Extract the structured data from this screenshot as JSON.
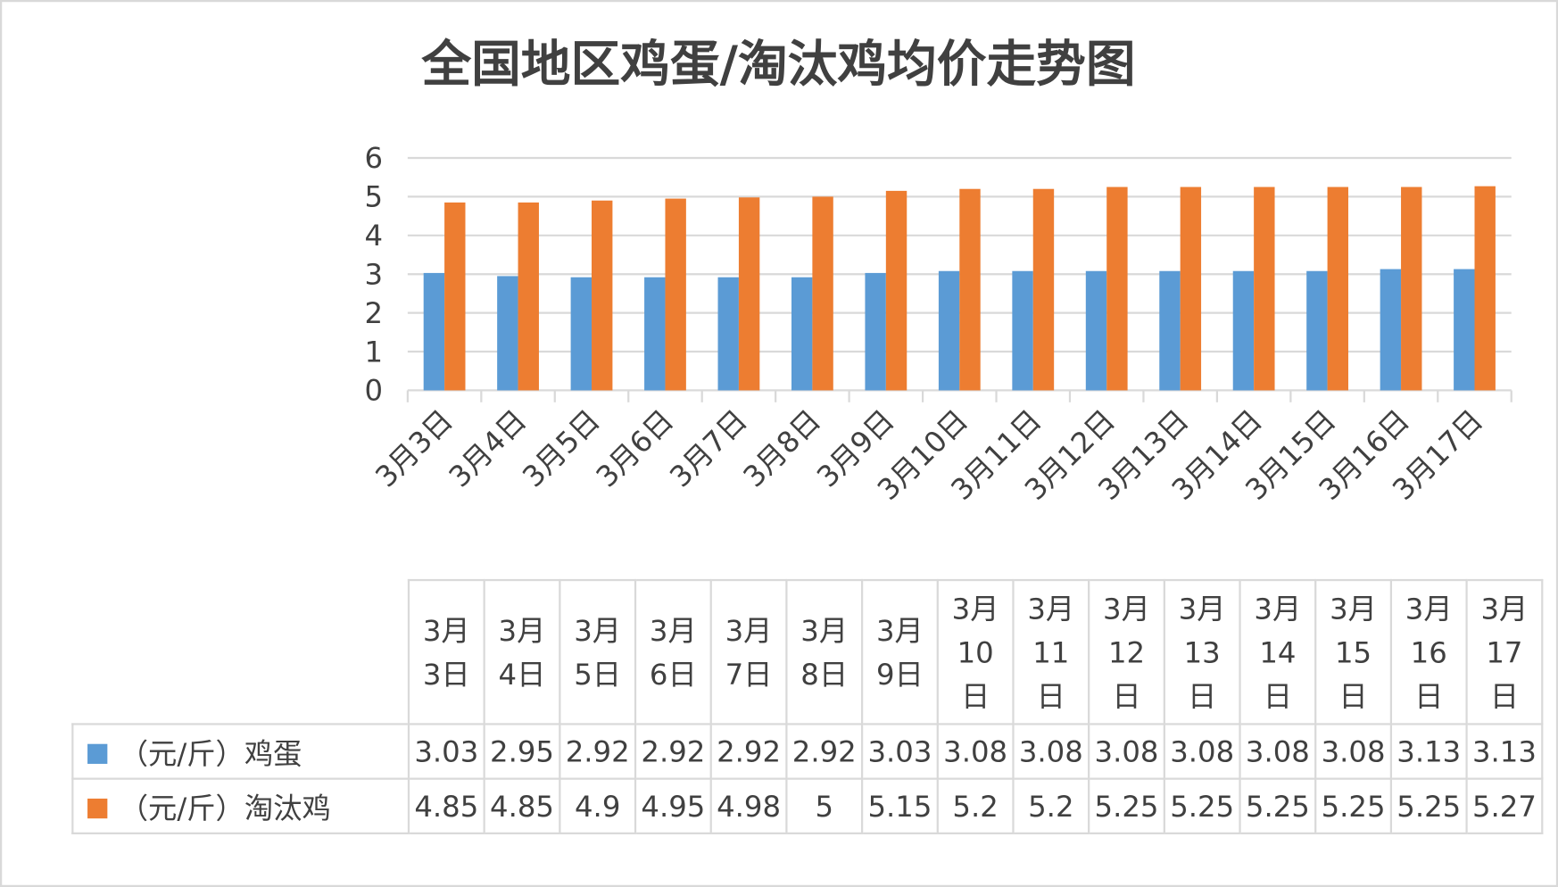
{
  "chart_data": {
    "type": "bar",
    "title": "全国地区鸡蛋/淘汰鸡均价走势图",
    "categories": [
      "3月3日",
      "3月4日",
      "3月5日",
      "3月6日",
      "3月7日",
      "3月8日",
      "3月9日",
      "3月10日",
      "3月11日",
      "3月12日",
      "3月13日",
      "3月14日",
      "3月15日",
      "3月16日",
      "3月17日"
    ],
    "series": [
      {
        "name": "（元/斤）鸡蛋",
        "color": "#5b9bd5",
        "values": [
          3.03,
          2.95,
          2.92,
          2.92,
          2.92,
          2.92,
          3.03,
          3.08,
          3.08,
          3.08,
          3.08,
          3.08,
          3.08,
          3.13,
          3.13
        ]
      },
      {
        "name": "（元/斤）淘汰鸡",
        "color": "#ed7d31",
        "values": [
          4.85,
          4.85,
          4.9,
          4.95,
          4.98,
          5,
          5.15,
          5.2,
          5.2,
          5.25,
          5.25,
          5.25,
          5.25,
          5.25,
          5.27
        ]
      }
    ],
    "ylim": [
      0,
      6
    ],
    "yticks": [
      0,
      1,
      2,
      3,
      4,
      5,
      6
    ],
    "grid": true,
    "data_table": true
  }
}
